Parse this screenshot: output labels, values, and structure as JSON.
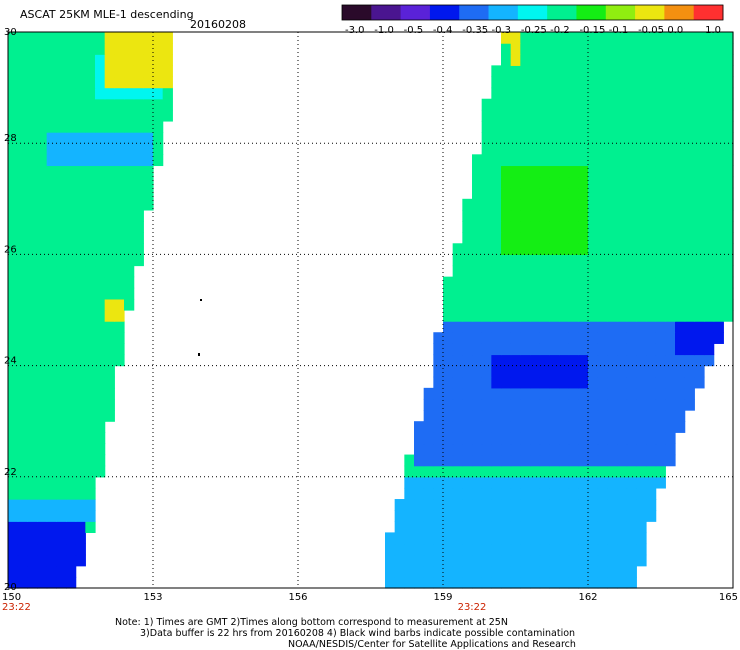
{
  "header": {
    "title": "ASCAT 25KM MLE-1 descending",
    "date": "20160208"
  },
  "colorbar": {
    "labels": [
      "-3.0",
      "-1.0",
      "-0.5",
      "-0.4",
      "-0.35",
      "-0.3",
      "-0.25",
      "-0.2",
      "-0.15",
      "-0.1",
      "-0.05",
      "0.0",
      "1.0"
    ],
    "colors": [
      "#2a0a2a",
      "#4a1590",
      "#5a22d8",
      "#0018ee",
      "#1e6cf4",
      "#14b4ff",
      "#00f6f0",
      "#00f090",
      "#14ee14",
      "#90ee10",
      "#ece610",
      "#f49010",
      "#ff3030"
    ]
  },
  "chart_data": {
    "type": "heatmap",
    "title": "ASCAT 25KM MLE-1 descending",
    "subtitle": "20160208",
    "x_ticks": [
      150,
      153,
      156,
      159,
      162,
      165
    ],
    "y_ticks": [
      20,
      22,
      24,
      26,
      28,
      30
    ],
    "xlim": [
      150,
      165
    ],
    "ylim": [
      20,
      30
    ],
    "grid": true,
    "time_labels": [
      {
        "x": 150,
        "text": "23:22"
      },
      {
        "x": 159.6,
        "text": "23:22"
      }
    ],
    "swaths": [
      {
        "name": "west",
        "edges": [
          [
            20.0,
            150.0,
            151.4
          ],
          [
            21.0,
            150.0,
            151.7
          ],
          [
            22.0,
            150.0,
            151.9
          ],
          [
            23.0,
            150.0,
            152.1
          ],
          [
            24.0,
            150.0,
            152.3
          ],
          [
            25.0,
            150.0,
            152.5
          ],
          [
            26.0,
            150.0,
            152.75
          ],
          [
            27.0,
            150.0,
            152.95
          ],
          [
            28.0,
            150.0,
            153.2
          ],
          [
            29.0,
            150.0,
            153.4
          ],
          [
            30.0,
            150.0,
            153.5
          ]
        ]
      },
      {
        "name": "east",
        "edges": [
          [
            20.0,
            157.7,
            163.0
          ],
          [
            21.0,
            157.9,
            163.2
          ],
          [
            22.0,
            158.2,
            163.6
          ],
          [
            23.0,
            158.5,
            164.0
          ],
          [
            24.0,
            158.8,
            164.5
          ],
          [
            25.0,
            158.95,
            165.0
          ],
          [
            26.0,
            159.25,
            165.0
          ],
          [
            27.0,
            159.5,
            165.0
          ],
          [
            28.0,
            159.75,
            165.0
          ],
          [
            29.0,
            159.95,
            165.0
          ],
          [
            30.0,
            160.3,
            165.0
          ]
        ]
      }
    ],
    "regions": [
      {
        "lat": [
          20.0,
          21.2
        ],
        "lon": [
          150.0,
          151.5
        ],
        "value": -0.37
      },
      {
        "lat": [
          21.2,
          21.5
        ],
        "lon": [
          150.0,
          151.8
        ],
        "value": -0.3
      },
      {
        "lat": [
          23.0,
          29.0
        ],
        "lon": [
          150.0,
          153.5
        ],
        "value": -0.18
      },
      {
        "lat": [
          27.6,
          28.2
        ],
        "lon": [
          150.7,
          153.0
        ],
        "value": -0.27
      },
      {
        "lat": [
          28.8,
          29.6
        ],
        "lon": [
          151.8,
          153.2
        ],
        "value": -0.22
      },
      {
        "lat": [
          29.0,
          30.0
        ],
        "lon": [
          152.0,
          153.6
        ],
        "value": -0.02
      },
      {
        "lat": [
          24.8,
          25.1
        ],
        "lon": [
          151.9,
          152.3
        ],
        "value": -0.03
      },
      {
        "lat": [
          20.0,
          22.0
        ],
        "lon": [
          157.7,
          163.6
        ],
        "value": -0.26
      },
      {
        "lat": [
          22.2,
          24.7
        ],
        "lon": [
          158.5,
          165.0
        ],
        "value": -0.33
      },
      {
        "lat": [
          23.5,
          24.2
        ],
        "lon": [
          160.0,
          162.0
        ],
        "value": -0.38
      },
      {
        "lat": [
          24.1,
          24.8
        ],
        "lon": [
          163.8,
          165.0
        ],
        "value": -0.4
      },
      {
        "lat": [
          25.0,
          30.0
        ],
        "lon": [
          159.0,
          165.0
        ],
        "value": -0.17
      },
      {
        "lat": [
          26.0,
          27.6
        ],
        "lon": [
          160.2,
          162.0
        ],
        "value": -0.12
      },
      {
        "lat": [
          29.3,
          30.0
        ],
        "lon": [
          160.3,
          160.5
        ],
        "value": -0.04
      }
    ]
  },
  "notes": {
    "line1": "Note: 1) Times are GMT 2)Times along bottom correspond to measurement at 25N",
    "line2": "3)Data buffer is 22 hrs from 20160208 4) Black wind barbs indicate possible contamination",
    "line3": "NOAA/NESDIS/Center for Satellite Applications and Research"
  }
}
